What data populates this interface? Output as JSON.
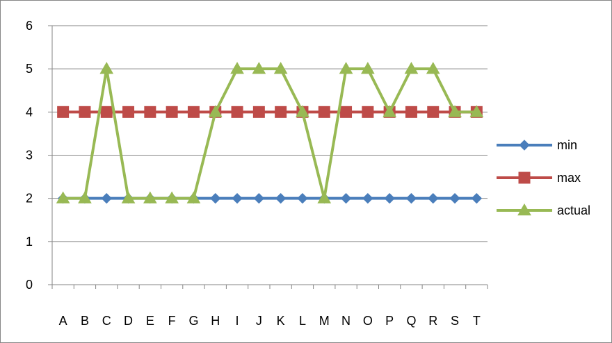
{
  "chart_data": {
    "type": "line",
    "categories": [
      "A",
      "B",
      "C",
      "D",
      "E",
      "F",
      "G",
      "H",
      "I",
      "J",
      "K",
      "L",
      "M",
      "N",
      "O",
      "P",
      "Q",
      "R",
      "S",
      "T"
    ],
    "ylim": [
      0,
      6
    ],
    "yticks": [
      "0",
      "1",
      "2",
      "3",
      "4",
      "5",
      "6"
    ],
    "grid": "horizontal",
    "legend_position": "right",
    "series": [
      {
        "name": "min",
        "color": "#4A7EBB",
        "marker": "diamond",
        "values": [
          2,
          2,
          2,
          2,
          2,
          2,
          2,
          2,
          2,
          2,
          2,
          2,
          2,
          2,
          2,
          2,
          2,
          2,
          2,
          2
        ]
      },
      {
        "name": "max",
        "color": "#BE4B48",
        "marker": "square",
        "values": [
          4,
          4,
          4,
          4,
          4,
          4,
          4,
          4,
          4,
          4,
          4,
          4,
          4,
          4,
          4,
          4,
          4,
          4,
          4,
          4
        ]
      },
      {
        "name": "actual",
        "color": "#98B954",
        "marker": "triangle",
        "values": [
          2,
          2,
          5,
          2,
          2,
          2,
          2,
          4,
          5,
          5,
          5,
          4,
          2,
          5,
          5,
          4,
          5,
          5,
          4,
          4
        ]
      }
    ]
  }
}
